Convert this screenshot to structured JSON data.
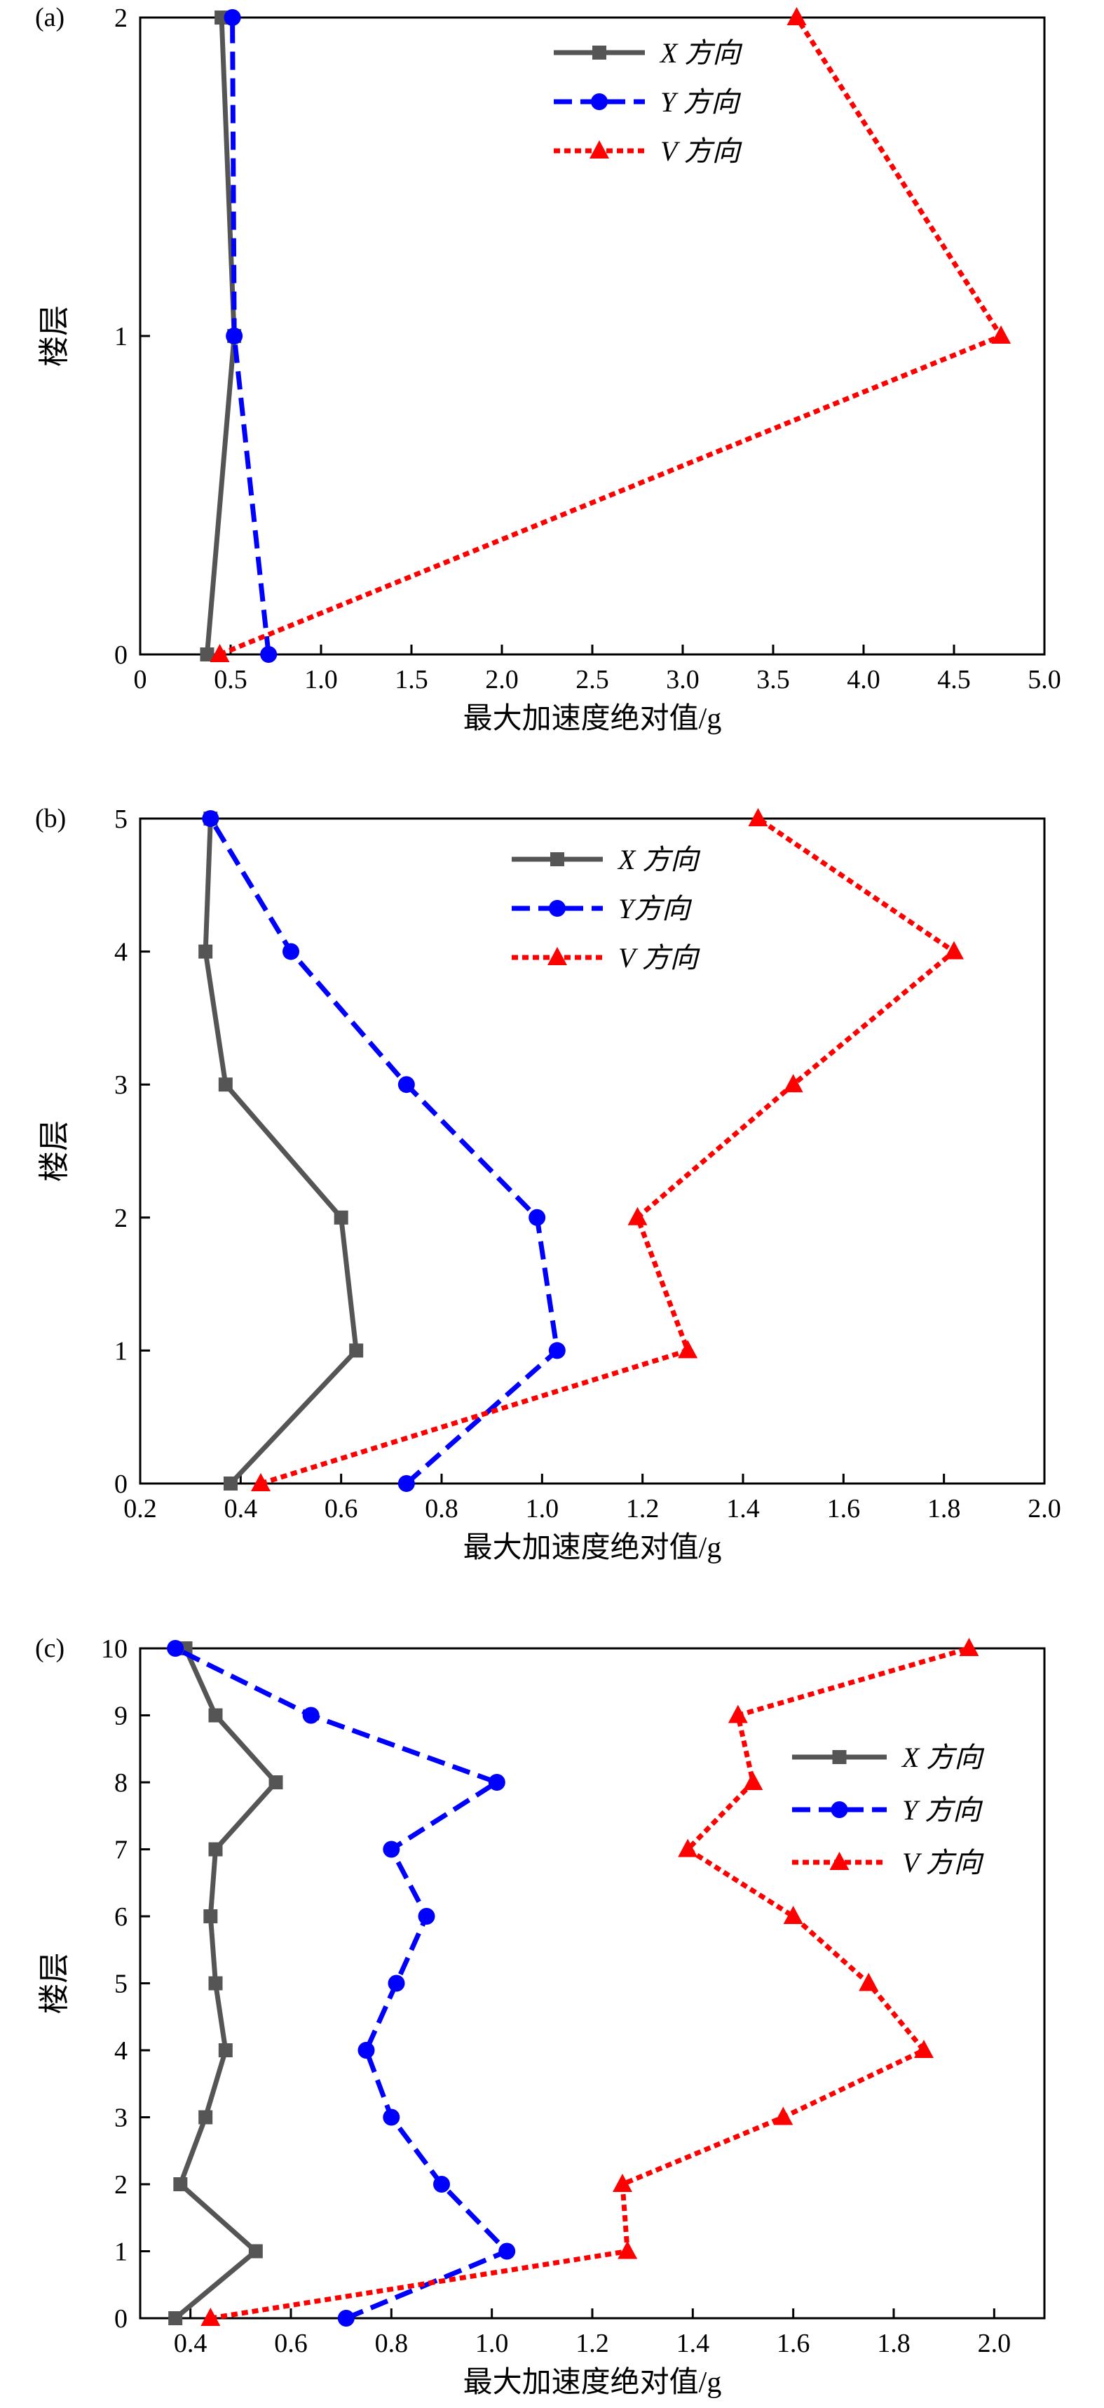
{
  "figure": {
    "chart_data": [
      {
        "type": "line",
        "panel_label": "(a)",
        "xlabel": "最大加速度绝对值/g",
        "ylabel": "楼层",
        "xlim": [
          0,
          5.0
        ],
        "ylim": [
          0,
          2
        ],
        "x_ticks": [
          "0",
          "0.5",
          "1.0",
          "1.5",
          "2.0",
          "2.5",
          "3.0",
          "3.5",
          "4.0",
          "4.5",
          "5.0"
        ],
        "y_ticks": [
          "0",
          "1",
          "2"
        ],
        "legend_position": "top-center",
        "series": [
          {
            "name": "X 方向",
            "color": "#555555",
            "line_style": "solid",
            "marker": "square",
            "x": [
              0.37,
              0.52,
              0.45
            ],
            "y": [
              0,
              1,
              2
            ]
          },
          {
            "name": "Y 方向",
            "color": "#0000ff",
            "line_style": "dashed",
            "marker": "circle",
            "x": [
              0.71,
              0.52,
              0.51
            ],
            "y": [
              0,
              1,
              2
            ]
          },
          {
            "name": "V 方向",
            "color": "#ff0000",
            "line_style": "dotted",
            "marker": "triangle",
            "x": [
              0.44,
              4.76,
              3.63
            ],
            "y": [
              0,
              1,
              2
            ]
          }
        ]
      },
      {
        "type": "line",
        "panel_label": "(b)",
        "xlabel": "最大加速度绝对值/g",
        "ylabel": "楼层",
        "xlim": [
          0.2,
          2.0
        ],
        "ylim": [
          0,
          5
        ],
        "x_ticks": [
          "0.2",
          "0.4",
          "0.6",
          "0.8",
          "1.0",
          "1.2",
          "1.4",
          "1.6",
          "1.8",
          "2.0"
        ],
        "y_ticks": [
          "0",
          "1",
          "2",
          "3",
          "4",
          "5"
        ],
        "legend_position": "top-center",
        "series": [
          {
            "name": "X 方向",
            "color": "#555555",
            "line_style": "solid",
            "marker": "square",
            "x": [
              0.38,
              0.63,
              0.6,
              0.37,
              0.33,
              0.34
            ],
            "y": [
              0,
              1,
              2,
              3,
              4,
              5
            ]
          },
          {
            "name": "Y方向",
            "color": "#0000ff",
            "line_style": "dashed",
            "marker": "circle",
            "x": [
              0.73,
              1.03,
              0.99,
              0.73,
              0.5,
              0.34
            ],
            "y": [
              0,
              1,
              2,
              3,
              4,
              5
            ]
          },
          {
            "name": "V 方向",
            "color": "#ff0000",
            "line_style": "dotted",
            "marker": "triangle",
            "x": [
              0.44,
              1.29,
              1.19,
              1.5,
              1.82,
              1.43
            ],
            "y": [
              0,
              1,
              2,
              3,
              4,
              5
            ]
          }
        ]
      },
      {
        "type": "line",
        "panel_label": "(c)",
        "xlabel": "最大加速度绝对值/g",
        "ylabel": "楼层",
        "xlim": [
          0.3,
          2.1
        ],
        "ylim": [
          0,
          10
        ],
        "x_ticks": [
          "0.4",
          "0.6",
          "0.8",
          "1.0",
          "1.2",
          "1.4",
          "1.6",
          "1.8",
          "2.0"
        ],
        "x_tick_values": [
          0.4,
          0.6,
          0.8,
          1.0,
          1.2,
          1.4,
          1.6,
          1.8,
          2.0
        ],
        "y_ticks": [
          "0",
          "1",
          "2",
          "3",
          "4",
          "5",
          "6",
          "7",
          "8",
          "9",
          "10"
        ],
        "legend_position": "middle-right",
        "series": [
          {
            "name": "X 方向",
            "color": "#555555",
            "line_style": "solid",
            "marker": "square",
            "x": [
              0.37,
              0.53,
              0.38,
              0.43,
              0.47,
              0.45,
              0.44,
              0.45,
              0.57,
              0.45,
              0.39
            ],
            "y": [
              0,
              1,
              2,
              3,
              4,
              5,
              6,
              7,
              8,
              9,
              10
            ]
          },
          {
            "name": "Y 方向",
            "color": "#0000ff",
            "line_style": "dashed",
            "marker": "circle",
            "x": [
              0.71,
              1.03,
              0.9,
              0.8,
              0.75,
              0.81,
              0.87,
              0.8,
              1.01,
              0.64,
              0.37
            ],
            "y": [
              0,
              1,
              2,
              3,
              4,
              5,
              6,
              7,
              8,
              9,
              10
            ]
          },
          {
            "name": "V 方向",
            "color": "#ff0000",
            "line_style": "dotted",
            "marker": "triangle",
            "x": [
              0.44,
              1.27,
              1.26,
              1.58,
              1.86,
              1.75,
              1.6,
              1.39,
              1.52,
              1.49,
              1.95
            ],
            "y": [
              0,
              1,
              2,
              3,
              4,
              5,
              6,
              7,
              8,
              9,
              10
            ]
          }
        ]
      }
    ]
  }
}
